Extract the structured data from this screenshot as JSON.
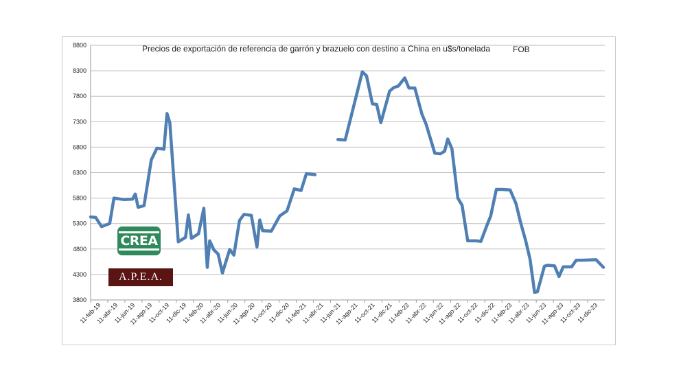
{
  "logos": {
    "crea": "CREA",
    "apea": "A.P.E.A."
  },
  "chart_data": {
    "type": "line",
    "title": "Precios de exportación de referencia de garrón  y brazuelo con destino a China en u$s/tonelada",
    "title_suffix": "FOB",
    "xlabel": "",
    "ylabel": "",
    "ylim": [
      3800,
      8800
    ],
    "yticks": [
      3800,
      4300,
      4800,
      5300,
      5800,
      6300,
      6800,
      7300,
      7800,
      8300,
      8800
    ],
    "xtick_labels": [
      "11-feb-19",
      "11-abr-19",
      "11-jun-19",
      "11-ago-19",
      "11-oct-19",
      "11-dic-19",
      "11-feb-20",
      "11-abr-20",
      "11-jun-20",
      "11-ago-20",
      "11-oct-20",
      "11-dic-20",
      "11-feb-21",
      "11-abr-21",
      "11-jun-21",
      "11-ago-21",
      "11-oct-21",
      "11-dic-21",
      "11-feb-22",
      "11-abr-22",
      "11-jun-22",
      "11-ago-22",
      "11-oct-22",
      "11-dic-22",
      "11-feb-23",
      "11-abr-23",
      "11-jun-23",
      "11-ago-23",
      "11-oct-23",
      "11-dic-23"
    ],
    "x_start": "2019-02-11",
    "x_end": "2024-02-15",
    "grid": "horizontal",
    "line_color": "#4f7fb3",
    "series": [
      {
        "name": "",
        "points": [
          [
            "2019-02-11",
            5430
          ],
          [
            "2019-03-01",
            5420
          ],
          [
            "2019-03-22",
            5240
          ],
          [
            "2019-04-20",
            5300
          ],
          [
            "2019-05-05",
            5800
          ],
          [
            "2019-06-10",
            5770
          ],
          [
            "2019-07-10",
            5780
          ],
          [
            "2019-07-20",
            5880
          ],
          [
            "2019-07-30",
            5620
          ],
          [
            "2019-08-20",
            5650
          ],
          [
            "2019-09-15",
            6550
          ],
          [
            "2019-10-05",
            6780
          ],
          [
            "2019-10-30",
            6760
          ],
          [
            "2019-11-10",
            7460
          ],
          [
            "2019-11-20",
            7280
          ],
          [
            "2019-12-20",
            4940
          ],
          [
            "2020-01-15",
            5030
          ],
          [
            "2020-01-25",
            5470
          ],
          [
            "2020-02-05",
            5010
          ],
          [
            "2020-03-01",
            5100
          ],
          [
            "2020-03-20",
            5600
          ],
          [
            "2020-04-01",
            4440
          ],
          [
            "2020-04-10",
            4960
          ],
          [
            "2020-04-25",
            4780
          ],
          [
            "2020-05-10",
            4700
          ],
          [
            "2020-05-25",
            4330
          ],
          [
            "2020-06-20",
            4790
          ],
          [
            "2020-07-05",
            4680
          ],
          [
            "2020-07-25",
            5360
          ],
          [
            "2020-08-10",
            5480
          ],
          [
            "2020-09-05",
            5460
          ],
          [
            "2020-09-25",
            4840
          ],
          [
            "2020-10-05",
            5370
          ],
          [
            "2020-10-15",
            5160
          ],
          [
            "2020-11-15",
            5150
          ],
          [
            "2020-12-15",
            5450
          ],
          [
            "2021-01-10",
            5550
          ],
          [
            "2021-02-05",
            5980
          ],
          [
            "2021-03-01",
            5950
          ],
          [
            "2021-03-20",
            6280
          ],
          [
            "2021-04-20",
            6260
          ],
          null,
          [
            "2021-07-10",
            6950
          ],
          [
            "2021-08-05",
            6940
          ],
          [
            "2021-09-05",
            7620
          ],
          [
            "2021-10-05",
            8280
          ],
          [
            "2021-10-20",
            8200
          ],
          [
            "2021-11-10",
            7650
          ],
          [
            "2021-11-25",
            7640
          ],
          [
            "2021-12-10",
            7280
          ],
          [
            "2022-01-10",
            7900
          ],
          [
            "2022-01-25",
            7970
          ],
          [
            "2022-02-10",
            8000
          ],
          [
            "2022-03-05",
            8160
          ],
          [
            "2022-03-20",
            7960
          ],
          [
            "2022-04-10",
            7960
          ],
          [
            "2022-05-05",
            7450
          ],
          [
            "2022-05-20",
            7250
          ],
          [
            "2022-06-20",
            6680
          ],
          [
            "2022-07-10",
            6670
          ],
          [
            "2022-07-25",
            6720
          ],
          [
            "2022-08-05",
            6960
          ],
          [
            "2022-08-20",
            6770
          ],
          [
            "2022-09-10",
            5800
          ],
          [
            "2022-09-25",
            5660
          ],
          [
            "2022-10-15",
            4960
          ],
          [
            "2022-11-15",
            4960
          ],
          [
            "2022-12-01",
            4950
          ],
          [
            "2022-12-25",
            5300
          ],
          [
            "2023-01-05",
            5450
          ],
          [
            "2023-01-25",
            5970
          ],
          [
            "2023-02-15",
            5970
          ],
          [
            "2023-03-15",
            5960
          ],
          [
            "2023-04-05",
            5690
          ],
          [
            "2023-04-20",
            5350
          ],
          [
            "2023-05-10",
            4950
          ],
          [
            "2023-05-25",
            4600
          ],
          [
            "2023-06-10",
            3950
          ],
          [
            "2023-06-20",
            3960
          ],
          [
            "2023-07-15",
            4460
          ],
          [
            "2023-07-25",
            4480
          ],
          [
            "2023-08-20",
            4470
          ],
          [
            "2023-09-05",
            4260
          ],
          [
            "2023-09-20",
            4450
          ],
          [
            "2023-10-20",
            4450
          ],
          [
            "2023-11-05",
            4580
          ],
          [
            "2023-11-25",
            4580
          ],
          [
            "2024-01-15",
            4590
          ],
          [
            "2024-02-10",
            4440
          ]
        ]
      }
    ]
  }
}
